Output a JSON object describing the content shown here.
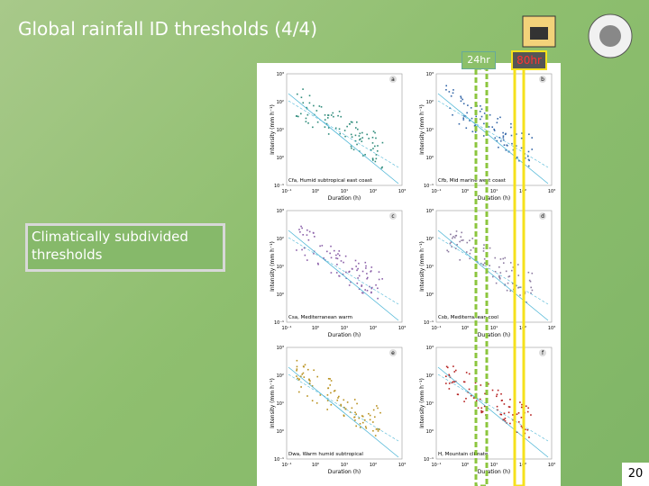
{
  "header": {
    "title": "Global rainfall ID thresholds (4/4)"
  },
  "markers": {
    "first": "24hr",
    "second": "80hr"
  },
  "callout": "Climatically subdivided thresholds",
  "figure": {
    "x_label": "Duration (h)",
    "y_label": "Intensity (mm h⁻¹)",
    "x_ticks": [
      "10⁻¹",
      "10⁰",
      "10¹",
      "10²",
      "10³"
    ],
    "y_ticks": [
      "10⁻¹",
      "10⁰",
      "10¹",
      "10²",
      "10³"
    ],
    "panels": [
      {
        "letter": "a",
        "caption": "Cfa, Humid subtropical east coast"
      },
      {
        "letter": "b",
        "caption": "Cfb, Mid marine west coast"
      },
      {
        "letter": "c",
        "caption": "Csa, Mediterranean warm"
      },
      {
        "letter": "d",
        "caption": "Csb, Mediterranean cool"
      },
      {
        "letter": "e",
        "caption": "Dwa, Warm humid subtropical"
      },
      {
        "letter": "f",
        "caption": "H, Mountain climate"
      }
    ]
  },
  "page_number": "20"
}
